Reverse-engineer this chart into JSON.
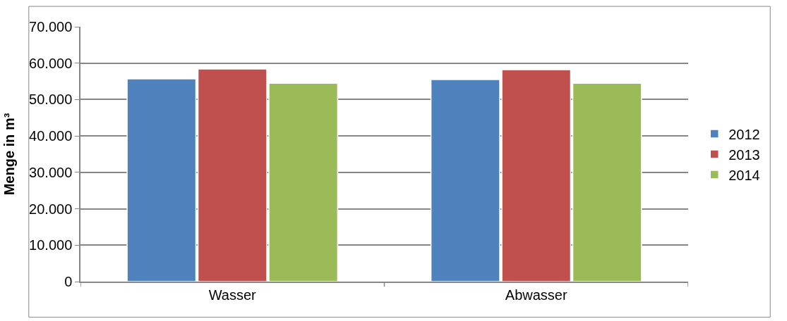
{
  "chart_data": {
    "type": "bar",
    "ylabel": "Menge in m³",
    "categories": [
      "Wasser",
      "Abwasser"
    ],
    "series": [
      {
        "name": "2012",
        "color": "#4f81bd",
        "values": [
          55700,
          55500
        ]
      },
      {
        "name": "2013",
        "color": "#c0504d",
        "values": [
          58400,
          58200
        ]
      },
      {
        "name": "2014",
        "color": "#9bbb59",
        "values": [
          54500,
          54500
        ]
      }
    ],
    "ylim": [
      0,
      70000
    ],
    "yticks": [
      0,
      {
        "value": 10000,
        "label": "10.000"
      },
      {
        "value": 20000,
        "label": "20.000"
      },
      {
        "value": 30000,
        "label": "30.000"
      },
      {
        "value": 40000,
        "label": "40.000"
      },
      {
        "value": 50000,
        "label": "50.000"
      },
      {
        "value": 60000,
        "label": "60.000"
      },
      {
        "value": 70000,
        "label": "70.000"
      }
    ],
    "grid": "y",
    "legend": "right"
  }
}
